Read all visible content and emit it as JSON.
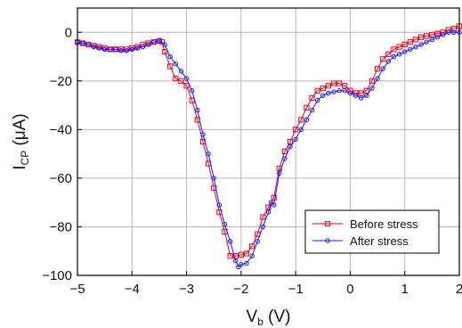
{
  "chart_data": {
    "type": "line",
    "title": "",
    "xlabel": {
      "main": "V",
      "sub": "b",
      "unit": " (V)"
    },
    "ylabel": {
      "main": "I",
      "sub": "CP",
      "unit": " (μA)"
    },
    "xlim": [
      -5,
      2
    ],
    "ylim": [
      -100,
      10
    ],
    "xticks": [
      -5,
      -4,
      -3,
      -2,
      -1,
      0,
      1,
      2
    ],
    "yticks": [
      0,
      -20,
      -40,
      -60,
      -80,
      -100
    ],
    "xtick_labels": [
      "−5",
      "−4",
      "−3",
      "−2",
      "−1",
      "0",
      "1",
      "2"
    ],
    "ytick_labels": [
      "0",
      "−20",
      "−40",
      "−60",
      "−80",
      "−100"
    ],
    "grid": true,
    "legend_position": "lower-right",
    "series": [
      {
        "name": "Before stress",
        "color": "#e8001c",
        "marker": "square",
        "x": [
          -5.0,
          -4.9,
          -4.8,
          -4.7,
          -4.6,
          -4.5,
          -4.4,
          -4.3,
          -4.2,
          -4.1,
          -4.0,
          -3.9,
          -3.8,
          -3.7,
          -3.6,
          -3.5,
          -3.45,
          -3.4,
          -3.3,
          -3.2,
          -3.1,
          -3.0,
          -2.9,
          -2.8,
          -2.7,
          -2.6,
          -2.5,
          -2.4,
          -2.3,
          -2.2,
          -2.1,
          -2.0,
          -1.9,
          -1.8,
          -1.7,
          -1.6,
          -1.5,
          -1.4,
          -1.3,
          -1.2,
          -1.1,
          -1.0,
          -0.9,
          -0.8,
          -0.7,
          -0.6,
          -0.5,
          -0.4,
          -0.3,
          -0.2,
          -0.1,
          0.0,
          0.1,
          0.2,
          0.3,
          0.4,
          0.5,
          0.6,
          0.7,
          0.8,
          0.9,
          1.0,
          1.1,
          1.2,
          1.3,
          1.4,
          1.5,
          1.6,
          1.7,
          1.8,
          1.9,
          2.0
        ],
        "y": [
          -4,
          -4.5,
          -5,
          -5.5,
          -6,
          -6.5,
          -7,
          -7,
          -7,
          -7,
          -6.5,
          -6,
          -5,
          -4.5,
          -4,
          -3.5,
          -4,
          -8,
          -14,
          -19,
          -20,
          -22,
          -28,
          -36,
          -45,
          -54,
          -64,
          -74,
          -82,
          -92,
          -92,
          -91.5,
          -91,
          -88,
          -83,
          -76,
          -72,
          -68,
          -56,
          -49,
          -45,
          -40,
          -36,
          -31,
          -27,
          -24,
          -23,
          -22,
          -21,
          -21,
          -22,
          -24,
          -25,
          -25,
          -24,
          -20,
          -15,
          -11,
          -9,
          -7,
          -6,
          -5,
          -4,
          -3,
          -2,
          -1.5,
          -1,
          -0.5,
          0,
          1,
          1.5,
          2.5
        ]
      },
      {
        "name": "After stress",
        "color": "#1a1aff",
        "marker": "circle",
        "x": [
          -5.0,
          -4.9,
          -4.8,
          -4.7,
          -4.6,
          -4.5,
          -4.4,
          -4.3,
          -4.2,
          -4.1,
          -4.0,
          -3.9,
          -3.8,
          -3.7,
          -3.6,
          -3.5,
          -3.4,
          -3.3,
          -3.2,
          -3.1,
          -3.0,
          -2.9,
          -2.8,
          -2.7,
          -2.6,
          -2.5,
          -2.4,
          -2.3,
          -2.2,
          -2.1,
          -2.05,
          -2.0,
          -1.9,
          -1.8,
          -1.7,
          -1.6,
          -1.5,
          -1.45,
          -1.4,
          -1.3,
          -1.2,
          -1.1,
          -1.0,
          -0.9,
          -0.8,
          -0.7,
          -0.6,
          -0.5,
          -0.4,
          -0.3,
          -0.2,
          -0.1,
          0.0,
          0.1,
          0.2,
          0.3,
          0.4,
          0.5,
          0.6,
          0.7,
          0.8,
          0.9,
          1.0,
          1.1,
          1.2,
          1.3,
          1.4,
          1.5,
          1.6,
          1.7,
          1.8,
          1.9,
          2.0
        ],
        "y": [
          -4,
          -4.5,
          -5,
          -6,
          -6.5,
          -7,
          -7,
          -7,
          -7.5,
          -7.5,
          -7,
          -6.5,
          -6,
          -5,
          -4,
          -3.5,
          -5,
          -10,
          -13,
          -16,
          -19,
          -24,
          -32,
          -42,
          -50,
          -60,
          -71,
          -79,
          -86,
          -94,
          -96.5,
          -95.5,
          -95,
          -92,
          -86,
          -80,
          -74,
          -70,
          -71,
          -58,
          -52,
          -47,
          -44,
          -40,
          -36,
          -32,
          -28,
          -26,
          -25,
          -24.5,
          -24,
          -24,
          -25,
          -26,
          -27,
          -26,
          -23,
          -19,
          -15,
          -12,
          -10,
          -9,
          -8,
          -7,
          -6,
          -5,
          -4,
          -3,
          -2,
          -1,
          0,
          0,
          0
        ]
      }
    ]
  }
}
